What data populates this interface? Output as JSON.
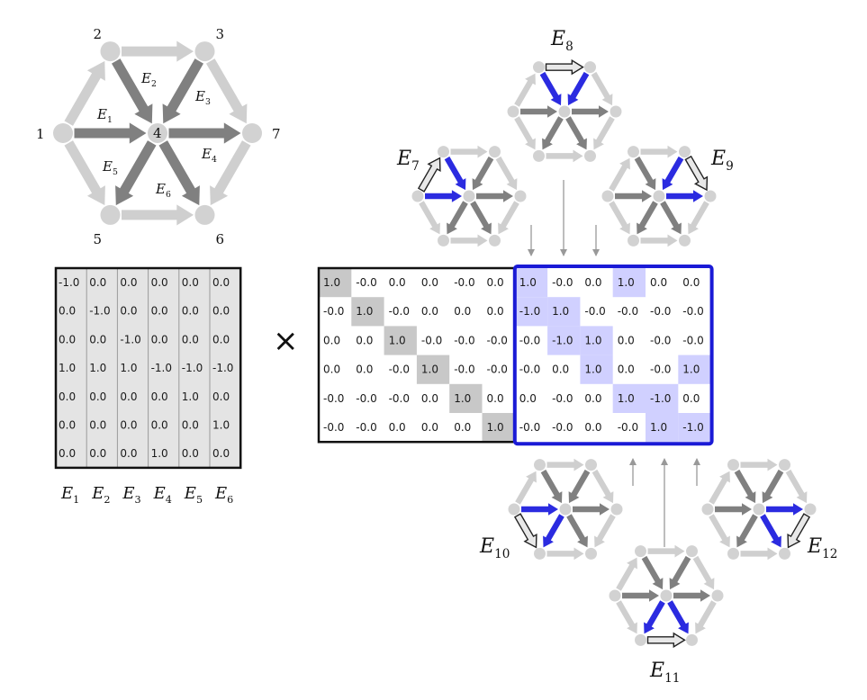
{
  "colors": {
    "edge_light": "#cfcfcf",
    "edge_dark": "#808080",
    "edge_blue": "#2b2be0",
    "node": "#d2d2d2",
    "matrix_fill": "#e4e4e4",
    "diag_fill": "#c8c8c8",
    "highlight_fill": "#d0d0ff",
    "highlight_border": "#1a1ad6"
  },
  "graph": {
    "node_labels": [
      "1",
      "2",
      "3",
      "4",
      "5",
      "6",
      "7"
    ],
    "edge_labels": [
      {
        "base": "E",
        "sub": "1"
      },
      {
        "base": "E",
        "sub": "2"
      },
      {
        "base": "E",
        "sub": "3"
      },
      {
        "base": "E",
        "sub": "4"
      },
      {
        "base": "E",
        "sub": "5"
      },
      {
        "base": "E",
        "sub": "6"
      }
    ]
  },
  "left_matrix": {
    "rows": [
      [
        "-1.0",
        "0.0",
        "0.0",
        "0.0",
        "0.0",
        "0.0"
      ],
      [
        "0.0",
        "-1.0",
        "0.0",
        "0.0",
        "0.0",
        "0.0"
      ],
      [
        "0.0",
        "0.0",
        "-1.0",
        "0.0",
        "0.0",
        "0.0"
      ],
      [
        "1.0",
        "1.0",
        "1.0",
        "-1.0",
        "-1.0",
        "-1.0"
      ],
      [
        "0.0",
        "0.0",
        "0.0",
        "0.0",
        "1.0",
        "0.0"
      ],
      [
        "0.0",
        "0.0",
        "0.0",
        "0.0",
        "0.0",
        "1.0"
      ],
      [
        "0.0",
        "0.0",
        "0.0",
        "1.0",
        "0.0",
        "0.0"
      ]
    ],
    "column_labels": [
      {
        "base": "E",
        "sub": "1"
      },
      {
        "base": "E",
        "sub": "2"
      },
      {
        "base": "E",
        "sub": "3"
      },
      {
        "base": "E",
        "sub": "4"
      },
      {
        "base": "E",
        "sub": "5"
      },
      {
        "base": "E",
        "sub": "6"
      }
    ]
  },
  "times_symbol": "×",
  "right_matrix": {
    "rows": [
      [
        "1.0",
        "-0.0",
        "0.0",
        "0.0",
        "-0.0",
        "0.0",
        "1.0",
        "-0.0",
        "0.0",
        "1.0",
        "0.0",
        "0.0"
      ],
      [
        "-0.0",
        "1.0",
        "-0.0",
        "0.0",
        "0.0",
        "0.0",
        "-1.0",
        "1.0",
        "-0.0",
        "-0.0",
        "-0.0",
        "-0.0"
      ],
      [
        "0.0",
        "0.0",
        "1.0",
        "-0.0",
        "-0.0",
        "-0.0",
        "-0.0",
        "-1.0",
        "1.0",
        "0.0",
        "-0.0",
        "-0.0"
      ],
      [
        "0.0",
        "0.0",
        "-0.0",
        "1.0",
        "-0.0",
        "-0.0",
        "-0.0",
        "0.0",
        "1.0",
        "0.0",
        "-0.0",
        "1.0"
      ],
      [
        "-0.0",
        "-0.0",
        "-0.0",
        "0.0",
        "1.0",
        "0.0",
        "0.0",
        "-0.0",
        "0.0",
        "1.0",
        "-1.0",
        "0.0"
      ],
      [
        "-0.0",
        "-0.0",
        "0.0",
        "0.0",
        "0.0",
        "1.0",
        "-0.0",
        "-0.0",
        "0.0",
        "-0.0",
        "1.0",
        "-1.0"
      ]
    ]
  },
  "cycle_labels": [
    {
      "base": "E",
      "sub": "7"
    },
    {
      "base": "E",
      "sub": "8"
    },
    {
      "base": "E",
      "sub": "9"
    },
    {
      "base": "E",
      "sub": "10"
    },
    {
      "base": "E",
      "sub": "11"
    },
    {
      "base": "E",
      "sub": "12"
    }
  ]
}
